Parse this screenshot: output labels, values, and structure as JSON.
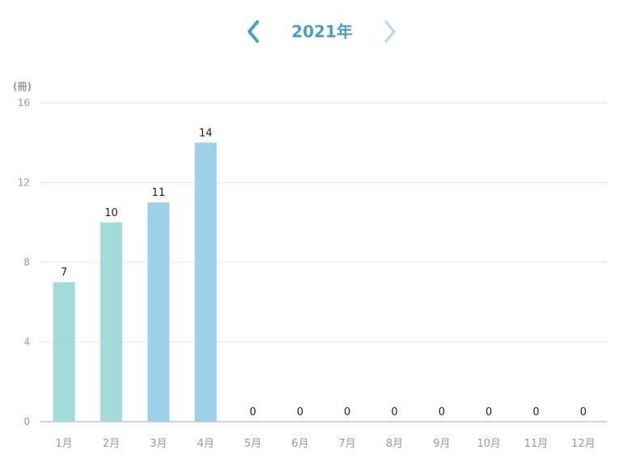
{
  "header": {
    "year_label": "2021年",
    "prev_icon": "chevron-left-icon",
    "next_icon": "chevron-right-icon"
  },
  "colors": {
    "accent": "#4a9fc9",
    "next_disabled": "#b5d9ee",
    "bar_teal": "#a3dbd9",
    "bar_blue": "#9dd0e8",
    "grid": "#e6e6e6",
    "axis_text": "#999999"
  },
  "chart_data": {
    "type": "bar",
    "unit_label": "(冊)",
    "categories": [
      "1月",
      "2月",
      "3月",
      "4月",
      "5月",
      "6月",
      "7月",
      "8月",
      "9月",
      "10月",
      "11月",
      "12月"
    ],
    "values": [
      7,
      10,
      11,
      14,
      0,
      0,
      0,
      0,
      0,
      0,
      0,
      0
    ],
    "bar_colors": [
      "#a3dbd9",
      "#a3dbd9",
      "#9dd0e8",
      "#9dd0e8",
      "#9dd0e8",
      "#9dd0e8",
      "#9dd0e8",
      "#9dd0e8",
      "#9dd0e8",
      "#9dd0e8",
      "#9dd0e8",
      "#9dd0e8"
    ],
    "ylim": [
      0,
      16
    ],
    "yticks": [
      0,
      4,
      8,
      12,
      16
    ],
    "grid": true,
    "data_labels": true
  }
}
